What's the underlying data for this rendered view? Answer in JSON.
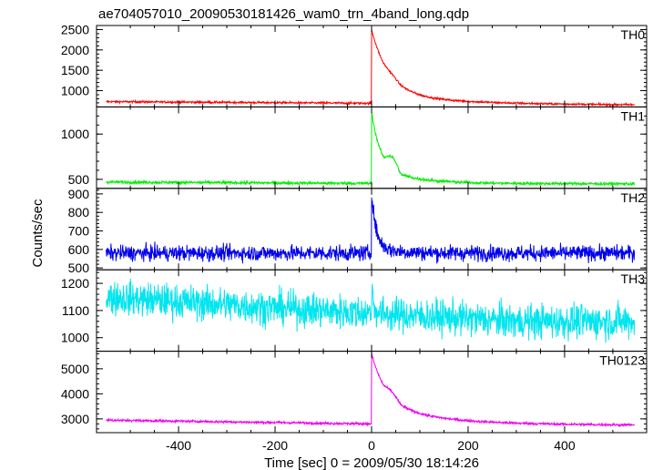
{
  "chart_data": {
    "type": "line",
    "title": "ae704057010_20090530181426_wam0_trn_4band_long.qdp",
    "xlabel": "Time [sec] 0 = 2009/05/30 18:14:26",
    "ylabel": "Counts/sec",
    "xlim": [
      -570,
      570
    ],
    "x_ticks": [
      -400,
      -200,
      0,
      200,
      400
    ],
    "x_range": [
      -550,
      545
    ],
    "trigger_time": 0,
    "series": [
      {
        "name": "TH0",
        "color": "#ff0000",
        "ylim": [
          600,
          2600
        ],
        "yticks": [
          1000,
          1500,
          2000,
          2500
        ],
        "baseline": [
          [
            -550,
            730
          ],
          [
            0,
            690
          ],
          [
            545,
            650
          ]
        ],
        "noise": 18,
        "peak": 2500,
        "decay": 35,
        "plateau": 300,
        "plateau_decay": 120,
        "shoulder": 120
      },
      {
        "name": "TH1",
        "color": "#00ee00",
        "ylim": [
          400,
          1300
        ],
        "yticks": [
          500,
          1000
        ],
        "baseline": [
          [
            -550,
            470
          ],
          [
            0,
            455
          ],
          [
            545,
            450
          ]
        ],
        "noise": 12,
        "peak": 1250,
        "decay": 18,
        "plateau": 200,
        "plateau_decay": 70,
        "shoulder": 250
      },
      {
        "name": "TH2",
        "color": "#0000ee",
        "ylim": [
          490,
          930
        ],
        "yticks": [
          500,
          600,
          700,
          800,
          900
        ],
        "baseline": [
          [
            -550,
            580
          ],
          [
            0,
            580
          ],
          [
            545,
            580
          ]
        ],
        "noise": 30,
        "peak": 910,
        "decay": 9,
        "plateau": 40,
        "plateau_decay": 40,
        "shoulder": 0
      },
      {
        "name": "TH3",
        "color": "#00e5ee",
        "ylim": [
          950,
          1250
        ],
        "yticks": [
          1000,
          1100,
          1200
        ],
        "baseline": [
          [
            -550,
            1150
          ],
          [
            -200,
            1110
          ],
          [
            0,
            1090
          ],
          [
            300,
            1060
          ],
          [
            545,
            1060
          ]
        ],
        "noise": 45,
        "peak": 1200,
        "decay": 4,
        "plateau": 0,
        "plateau_decay": 1,
        "shoulder": 0
      },
      {
        "name": "TH0123",
        "color": "#ee00ee",
        "ylim": [
          2450,
          5700
        ],
        "yticks": [
          3000,
          4000,
          5000
        ],
        "baseline": [
          [
            -550,
            2950
          ],
          [
            0,
            2800
          ],
          [
            545,
            2750
          ]
        ],
        "noise": 35,
        "peak": 5600,
        "decay": 30,
        "plateau": 900,
        "plateau_decay": 110,
        "shoulder": 400
      }
    ]
  }
}
